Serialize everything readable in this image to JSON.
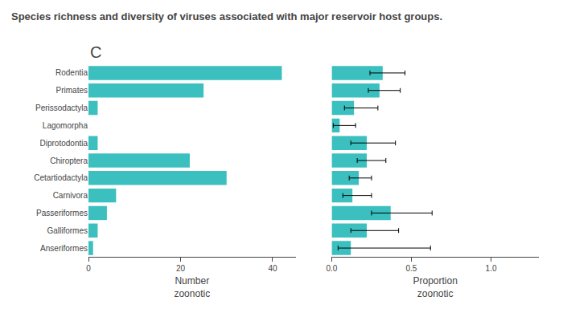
{
  "chart_data": [
    {
      "type": "bar",
      "title": "Species richness and diversity of viruses associated with major reservoir host groups.",
      "annotations": [
        "C"
      ],
      "orientation": "horizontal",
      "categories": [
        "Rodentia",
        "Primates",
        "Perissodactyla",
        "Lagomorpha",
        "Diprotodontia",
        "Chiroptera",
        "Cetartiodactyla",
        "Carnivora",
        "Passeriformes",
        "Galliformes",
        "Anseriformes"
      ],
      "values": [
        42,
        25,
        2,
        0,
        2,
        22,
        30,
        6,
        4,
        2,
        1
      ],
      "color": "#3bbfbf",
      "xlabel": "Number\nzoonotic",
      "xlim": [
        0,
        45
      ],
      "xticks": [
        0,
        20,
        40
      ],
      "grid": false
    },
    {
      "type": "bar",
      "orientation": "horizontal",
      "categories": [
        "Rodentia",
        "Primates",
        "Perissodactyla",
        "Lagomorpha",
        "Diprotodontia",
        "Chiroptera",
        "Cetartiodactyla",
        "Carnivora",
        "Passeriformes",
        "Galliformes",
        "Anseriformes"
      ],
      "values": [
        0.32,
        0.3,
        0.14,
        0.05,
        0.22,
        0.22,
        0.17,
        0.13,
        0.37,
        0.22,
        0.12
      ],
      "error_low": [
        0.08,
        0.07,
        0.06,
        0.04,
        0.1,
        0.06,
        0.06,
        0.06,
        0.12,
        0.1,
        0.08
      ],
      "error_high": [
        0.14,
        0.13,
        0.15,
        0.1,
        0.18,
        0.12,
        0.08,
        0.12,
        0.26,
        0.2,
        0.5
      ],
      "color": "#3bbfbf",
      "xlabel": "Proportion\nzoonotic",
      "xlim": [
        0.0,
        1.3
      ],
      "xticks": [
        {
          "value": 0.0,
          "label": "0.0"
        },
        {
          "value": 0.5,
          "label": "0.5"
        },
        {
          "value": 1.0,
          "label": "1.0"
        }
      ],
      "tick_labels": "x",
      "grid": false
    }
  ]
}
